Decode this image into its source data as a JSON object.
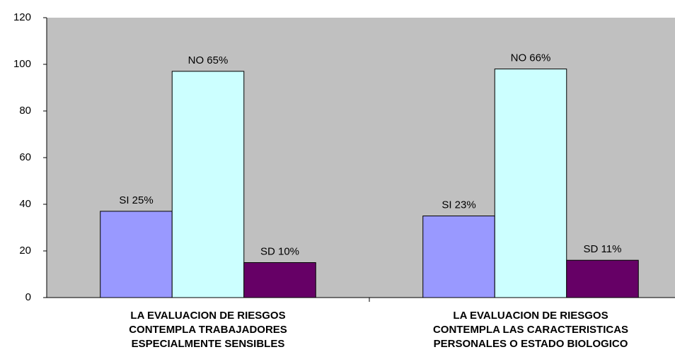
{
  "chart_data": {
    "type": "bar",
    "categories": [
      [
        "LA EVALUACION DE RIESGOS",
        "CONTEMPLA TRABAJADORES",
        "ESPECIALMENTE SENSIBLES"
      ],
      [
        "LA EVALUACION DE RIESGOS",
        "CONTEMPLA LAS CARACTERISTICAS",
        "PERSONALES O ESTADO BIOLOGICO"
      ]
    ],
    "series": [
      {
        "color": "#9999ff",
        "values": [
          37,
          35
        ],
        "labels": [
          "SI  25%",
          "SI  23%"
        ]
      },
      {
        "color": "#ccffff",
        "values": [
          97,
          98
        ],
        "labels": [
          "NO  65%",
          "NO  66%"
        ]
      },
      {
        "color": "#660066",
        "values": [
          15,
          16
        ],
        "labels": [
          "SD 10%",
          "SD 11%"
        ]
      }
    ],
    "ylim": [
      0,
      120
    ],
    "yticks": [
      0,
      20,
      40,
      60,
      80,
      100,
      120
    ],
    "grid": false,
    "plot_background": "#c0c0c0"
  }
}
